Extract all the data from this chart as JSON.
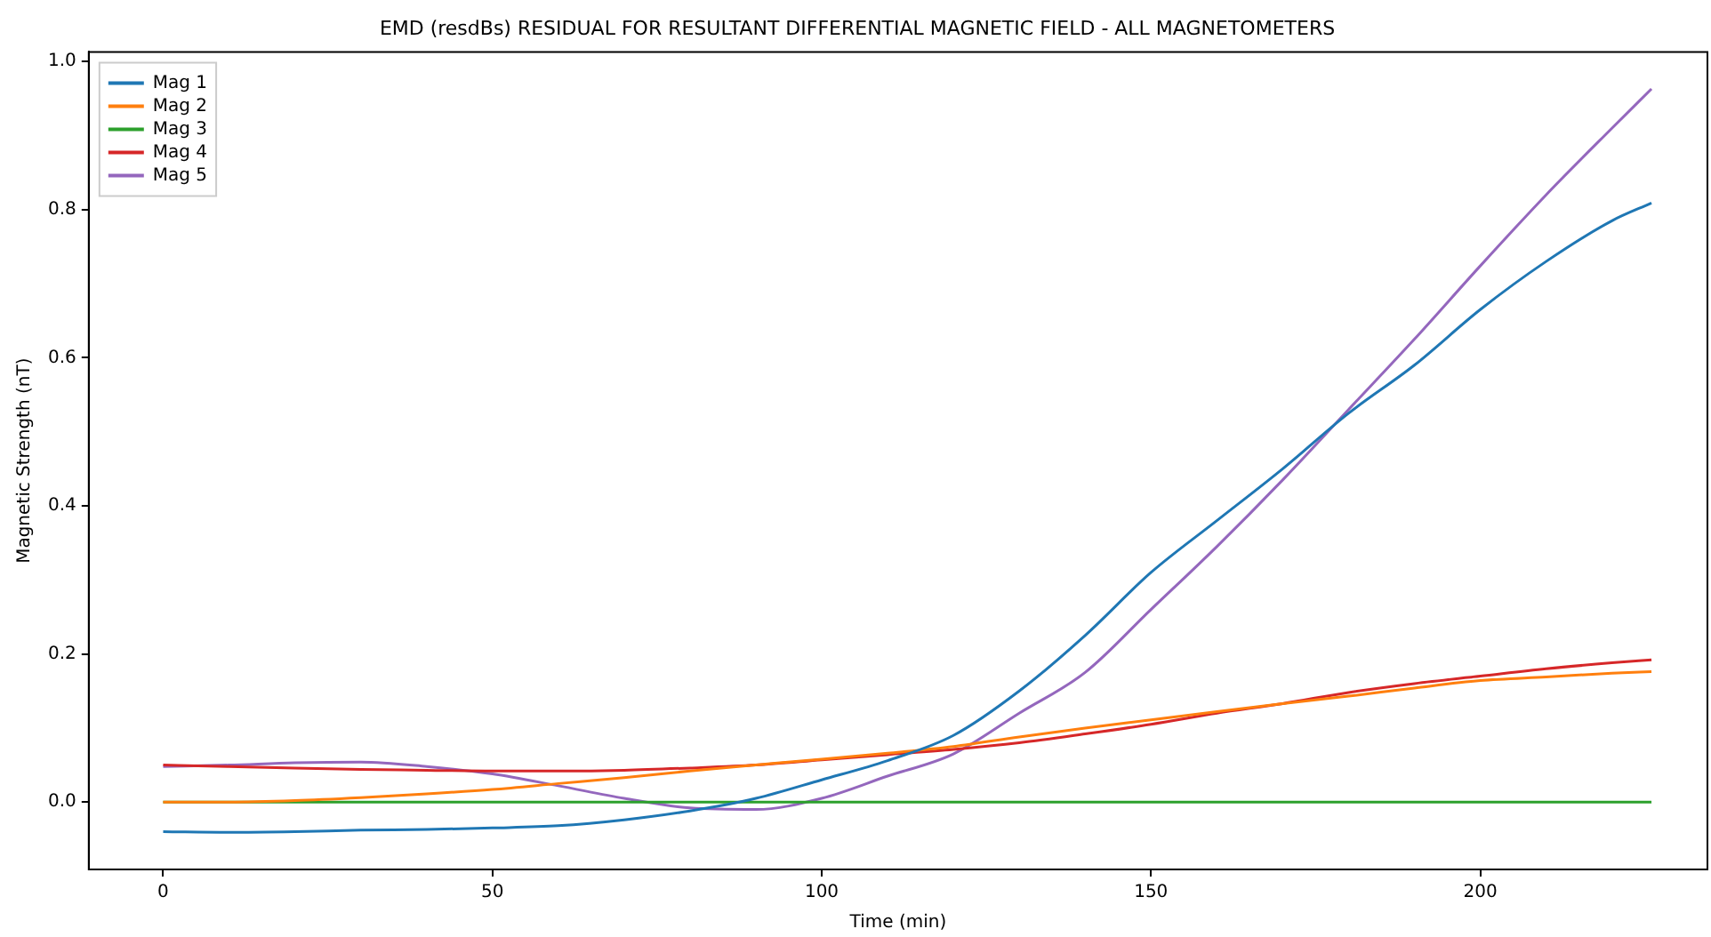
{
  "chart_data": {
    "type": "line",
    "title": "EMD (resdBs) RESIDUAL FOR RESULTANT DIFFERENTIAL MAGNETIC FIELD - ALL MAGNETOMETERS",
    "xlabel": "Time (min)",
    "ylabel": "Magnetic Strength (nT)",
    "x": [
      0,
      10,
      20,
      30,
      40,
      50,
      60,
      70,
      80,
      90,
      100,
      110,
      120,
      130,
      140,
      150,
      160,
      170,
      180,
      190,
      200,
      210,
      220,
      226
    ],
    "series": [
      {
        "name": "Mag 1",
        "color": "#1f77b4",
        "values": [
          -0.04,
          -0.041,
          -0.04,
          -0.038,
          -0.037,
          -0.035,
          -0.032,
          -0.024,
          -0.012,
          0.005,
          0.03,
          0.056,
          0.09,
          0.15,
          0.225,
          0.31,
          0.38,
          0.45,
          0.525,
          0.59,
          0.665,
          0.73,
          0.785,
          0.809
        ]
      },
      {
        "name": "Mag 2",
        "color": "#ff7f0e",
        "values": [
          0,
          0,
          0.002,
          0.006,
          0.011,
          0.017,
          0.025,
          0.033,
          0.042,
          0.05,
          0.058,
          0.066,
          0.075,
          0.088,
          0.1,
          0.111,
          0.122,
          0.133,
          0.143,
          0.154,
          0.164,
          0.169,
          0.174,
          0.176
        ]
      },
      {
        "name": "Mag 3",
        "color": "#2ca02c",
        "values": [
          0,
          0,
          0,
          0,
          0,
          0,
          0,
          0,
          0,
          0,
          0,
          0,
          0,
          0,
          0,
          0,
          0,
          0,
          0,
          0,
          0,
          0,
          0,
          0
        ]
      },
      {
        "name": "Mag 4",
        "color": "#d62728",
        "values": [
          0.05,
          0.048,
          0.046,
          0.044,
          0.043,
          0.042,
          0.042,
          0.043,
          0.046,
          0.05,
          0.057,
          0.064,
          0.071,
          0.08,
          0.092,
          0.105,
          0.12,
          0.133,
          0.148,
          0.16,
          0.17,
          0.18,
          0.188,
          0.192
        ]
      },
      {
        "name": "Mag 5",
        "color": "#9467bd",
        "values": [
          0.048,
          0.05,
          0.053,
          0.054,
          0.048,
          0.038,
          0.022,
          0.005,
          -0.008,
          -0.01,
          0.005,
          0.035,
          0.065,
          0.12,
          0.175,
          0.26,
          0.345,
          0.435,
          0.53,
          0.625,
          0.724,
          0.82,
          0.91,
          0.963
        ]
      }
    ],
    "xlim": [
      -11.3,
      234.5
    ],
    "xticks": [
      0,
      50,
      100,
      150,
      200
    ],
    "ylim": [
      -0.091,
      1.013
    ],
    "yticks": [
      {
        "value": 0,
        "label": "0.0"
      },
      {
        "value": 0.2,
        "label": "0.2"
      },
      {
        "value": 0.4,
        "label": "0.4"
      },
      {
        "value": 0.6,
        "label": "0.6"
      },
      {
        "value": 0.8,
        "label": "0.8"
      },
      {
        "value": 1,
        "label": "1.0"
      }
    ],
    "legend": "top left",
    "grid": false,
    "marker": "none",
    "line_style": "solid"
  }
}
